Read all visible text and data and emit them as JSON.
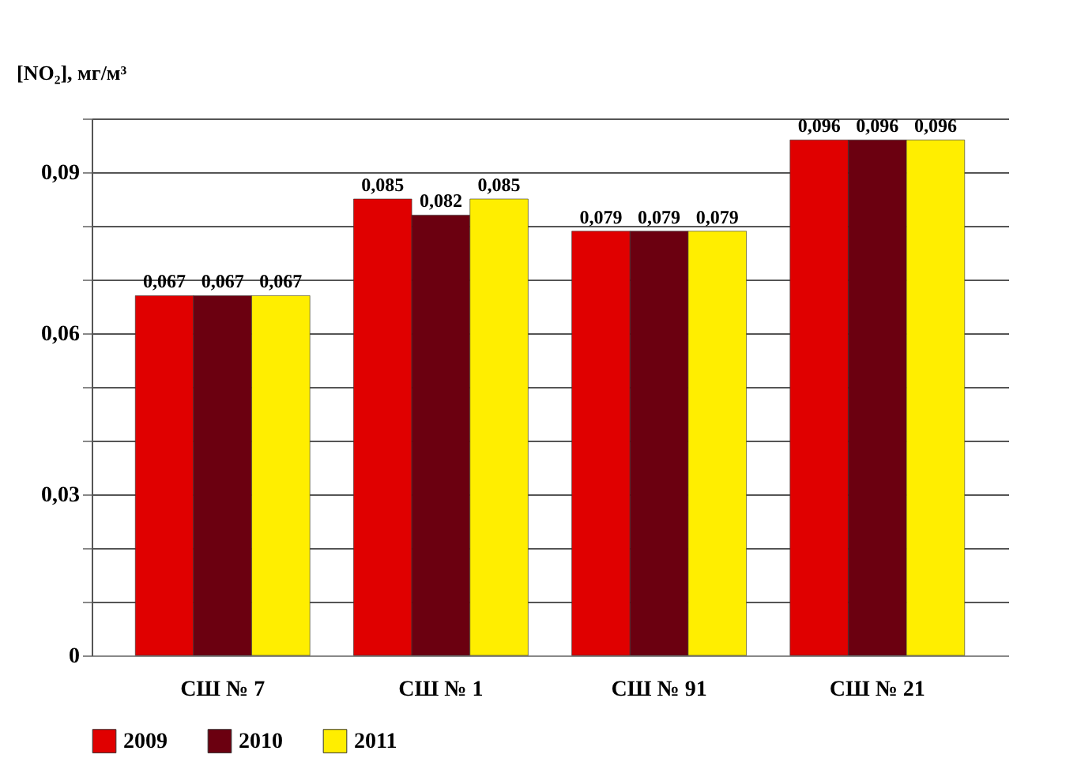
{
  "chart_data": {
    "type": "bar",
    "ylabel": "[NO₂], мг/м³",
    "categories": [
      "СШ № 7",
      "СШ № 1",
      "СШ № 91",
      "СШ № 21"
    ],
    "series": [
      {
        "name": "2009",
        "color": "#e00000",
        "values": [
          0.067,
          0.085,
          0.079,
          0.096
        ],
        "value_labels": [
          "0,067",
          "0,085",
          "0,079",
          "0,096"
        ]
      },
      {
        "name": "2010",
        "color": "#6b0010",
        "values": [
          0.067,
          0.082,
          0.079,
          0.096
        ],
        "value_labels": [
          "0,067",
          "0,082",
          "0,079",
          "0,096"
        ]
      },
      {
        "name": "2011",
        "color": "#ffee00",
        "values": [
          0.067,
          0.085,
          0.079,
          0.096
        ],
        "value_labels": [
          "0,067",
          "0,085",
          "0,079",
          "0,096"
        ]
      }
    ],
    "ylim": [
      0,
      0.1
    ],
    "yticks": [
      0,
      {
        "value": 0.01,
        "label": null
      },
      {
        "value": 0.02,
        "label": null
      },
      {
        "value": 0.03,
        "label": "0,03"
      },
      {
        "value": 0.04,
        "label": null
      },
      {
        "value": 0.05,
        "label": null
      },
      {
        "value": 0.06,
        "label": "0,06"
      },
      {
        "value": 0.07,
        "label": null
      },
      {
        "value": 0.08,
        "label": null
      },
      {
        "value": 0.09,
        "label": "0,09"
      },
      {
        "value": 0.1,
        "label": null
      }
    ],
    "grid": "y",
    "legend": "bottom"
  }
}
